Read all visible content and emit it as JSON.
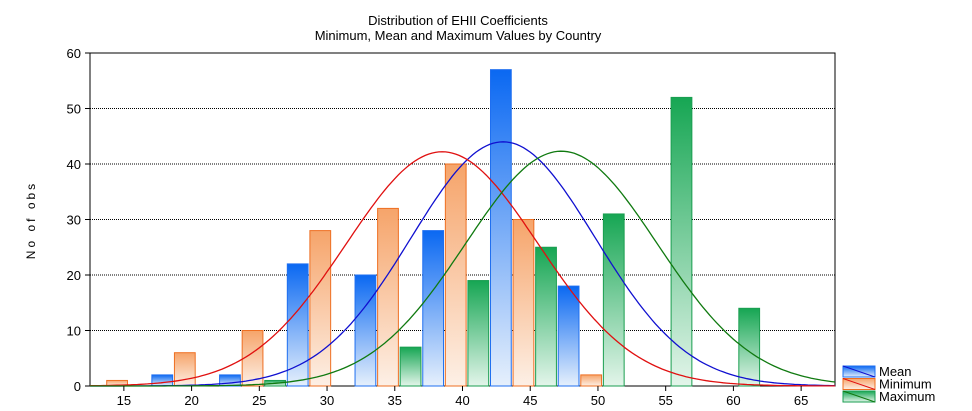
{
  "chart_data": {
    "type": "bar",
    "title": "Distribution of EHII Coefficients",
    "subtitle": "Minimum, Mean and Maximum Values by Country",
    "xlabel": "",
    "ylabel": "No of obs",
    "xlim": [
      12.5,
      67.5
    ],
    "ylim": [
      0,
      60
    ],
    "xticks": [
      15,
      20,
      25,
      30,
      35,
      40,
      45,
      50,
      55,
      60,
      65
    ],
    "yticks": [
      0,
      10,
      20,
      30,
      40,
      50,
      60
    ],
    "grid": true,
    "legend_position": "bottom-right",
    "series": [
      {
        "name": "Mean",
        "color": "#1f6ff0",
        "x": [
          17,
          22,
          27,
          32,
          37,
          42,
          47,
          52,
          57,
          62,
          67
        ],
        "values": [
          0,
          2,
          2,
          22,
          20,
          28,
          57,
          18,
          0,
          0,
          0
        ],
        "normal_fit": {
          "mean": 43,
          "peak": 44
        }
      },
      {
        "name": "Minimum",
        "color": "#ee6f22",
        "x": [
          17,
          22,
          27,
          32,
          37,
          42,
          47,
          52,
          57,
          62,
          67
        ],
        "values": [
          1,
          6,
          10,
          28,
          32,
          40,
          30,
          2,
          0,
          0,
          0
        ],
        "normal_fit": {
          "mean": 38.5,
          "peak": 42.2
        }
      },
      {
        "name": "Maximum",
        "color": "#1a9e50",
        "x": [
          17,
          22,
          27,
          32,
          37,
          42,
          47,
          52,
          57,
          62,
          67
        ],
        "values": [
          0,
          0,
          1,
          0,
          7,
          19,
          25,
          31,
          52,
          14,
          0
        ],
        "normal_fit": {
          "mean": 47.3,
          "peak": 42.3
        }
      }
    ]
  }
}
